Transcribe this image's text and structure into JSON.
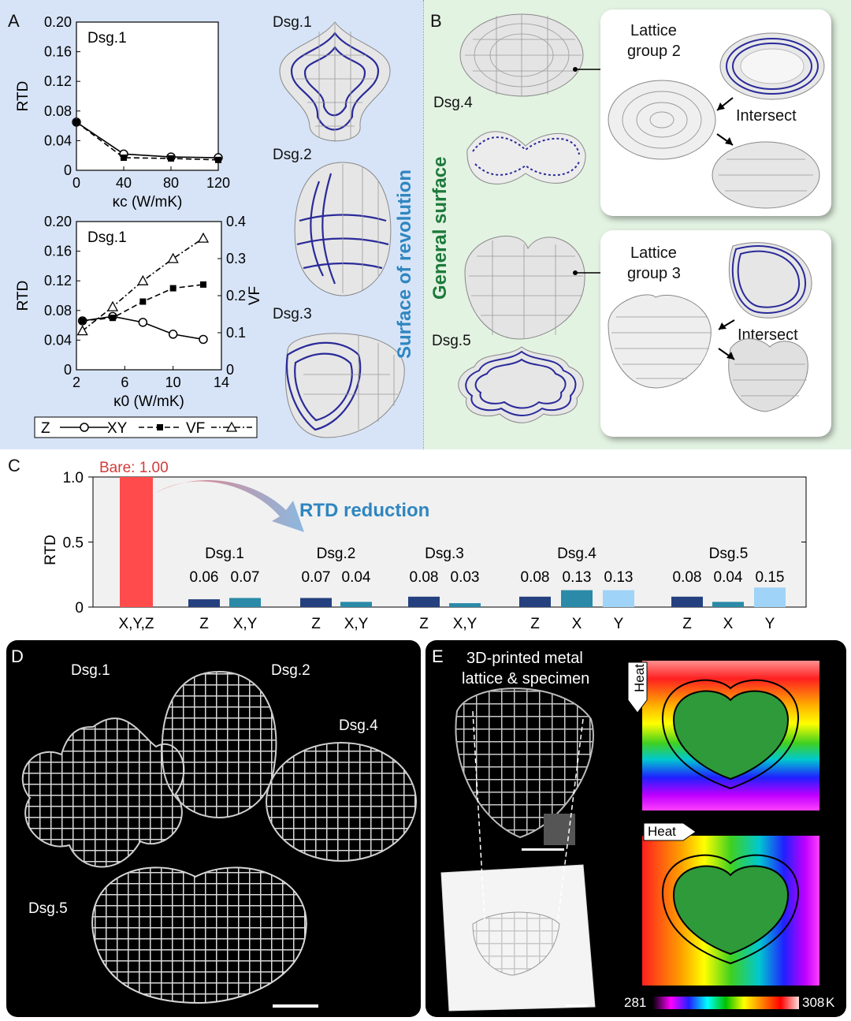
{
  "panels": {
    "a": {
      "label": "A",
      "vertical_label": "Surface of revolution",
      "designs": [
        "Dsg.1",
        "Dsg.2",
        "Dsg.3"
      ]
    },
    "b": {
      "label": "B",
      "vertical_label": "General surface",
      "designs": [
        "Dsg.4",
        "Dsg.5"
      ],
      "groups": [
        {
          "title_line1": "Lattice",
          "title_line2": "group 2",
          "intersect": "Intersect"
        },
        {
          "title_line1": "Lattice",
          "title_line2": "group 3",
          "intersect": "Intersect"
        }
      ]
    },
    "c": {
      "label": "C"
    },
    "d": {
      "label": "D",
      "designs": [
        "Dsg.1",
        "Dsg.2",
        "Dsg.4",
        "Dsg.5"
      ]
    },
    "e": {
      "label": "E",
      "caption_line1": "3D-printed metal",
      "caption_line2": "lattice & specimen",
      "heat_label": "Heat",
      "colorbar_min": "281",
      "colorbar_max": "308",
      "colorbar_unit": "K",
      "colorbar_colors": [
        "#000000",
        "#ff00ff",
        "#2020ff",
        "#00ffff",
        "#00c000",
        "#ffff00",
        "#ff8000",
        "#ff0000",
        "#ffe0e0"
      ]
    }
  },
  "chart_data": [
    {
      "id": "a-top",
      "type": "line",
      "annotation": "Dsg.1",
      "xlabel": "κc (W/mK)",
      "ylabel": "RTD",
      "xlim": [
        0,
        120
      ],
      "ylim": [
        0,
        0.2
      ],
      "xticks": [
        "0",
        "40",
        "80",
        "120"
      ],
      "yticks": [
        "0",
        "0.04",
        "0.08",
        "0.12",
        "0.16",
        "0.20"
      ],
      "series": [
        {
          "name": "Z",
          "x": [
            0,
            40,
            80,
            120
          ],
          "values": [
            0.065,
            0.022,
            0.018,
            0.017
          ]
        },
        {
          "name": "XY",
          "x": [
            0,
            40,
            80,
            120
          ],
          "values": [
            0.065,
            0.017,
            0.016,
            0.014
          ]
        }
      ]
    },
    {
      "id": "a-bottom",
      "type": "line",
      "annotation": "Dsg.1",
      "xlabel": "κ0 (W/mK)",
      "ylabel": "RTD",
      "y2label": "VF",
      "xlim": [
        2,
        14
      ],
      "ylim": [
        0,
        0.2
      ],
      "y2lim": [
        0,
        0.4
      ],
      "xticks": [
        "2",
        "6",
        "10",
        "14"
      ],
      "yticks": [
        "0",
        "0.04",
        "0.08",
        "0.12",
        "0.16",
        "0.20"
      ],
      "y2ticks": [
        "0",
        "0.1",
        "0.2",
        "0.3",
        "0.4"
      ],
      "series": [
        {
          "name": "Z",
          "axis": "left",
          "x": [
            2.5,
            5,
            7.5,
            10,
            12.5
          ],
          "values": [
            0.066,
            0.072,
            0.064,
            0.048,
            0.041
          ]
        },
        {
          "name": "XY",
          "axis": "left",
          "x": [
            2.5,
            5,
            7.5,
            10,
            12.5
          ],
          "values": [
            0.066,
            0.07,
            0.092,
            0.11,
            0.115
          ]
        },
        {
          "name": "VF",
          "axis": "right",
          "x": [
            2.5,
            5,
            7.5,
            10,
            12.5
          ],
          "values": [
            0.105,
            0.17,
            0.24,
            0.3,
            0.355
          ]
        }
      ],
      "legend": [
        "Z",
        "XY",
        "VF"
      ]
    },
    {
      "id": "c",
      "type": "bar",
      "ylabel": "RTD",
      "ylim": [
        0,
        1.0
      ],
      "yticks": [
        "0",
        "0.5",
        "1.0"
      ],
      "bare_label": "Bare: 1.00",
      "reduction_label": "RTD reduction",
      "groups": [
        {
          "name": "",
          "bars": [
            {
              "label": "X,Y,Z",
              "value": 1.0,
              "text": "",
              "color": "#ff4b4b"
            }
          ]
        },
        {
          "name": "Dsg.1",
          "bars": [
            {
              "label": "Z",
              "value": 0.06,
              "text": "0.06",
              "color": "#24407f"
            },
            {
              "label": "X,Y",
              "value": 0.07,
              "text": "0.07",
              "color": "#2a8aa8"
            }
          ]
        },
        {
          "name": "Dsg.2",
          "bars": [
            {
              "label": "Z",
              "value": 0.07,
              "text": "0.07",
              "color": "#24407f"
            },
            {
              "label": "X,Y",
              "value": 0.04,
              "text": "0.04",
              "color": "#2a8aa8"
            }
          ]
        },
        {
          "name": "Dsg.3",
          "bars": [
            {
              "label": "Z",
              "value": 0.08,
              "text": "0.08",
              "color": "#24407f"
            },
            {
              "label": "X,Y",
              "value": 0.03,
              "text": "0.03",
              "color": "#2a8aa8"
            }
          ]
        },
        {
          "name": "Dsg.4",
          "bars": [
            {
              "label": "Z",
              "value": 0.08,
              "text": "0.08",
              "color": "#24407f"
            },
            {
              "label": "X",
              "value": 0.13,
              "text": "0.13",
              "color": "#2a8aa8"
            },
            {
              "label": "Y",
              "value": 0.13,
              "text": "0.13",
              "color": "#9fd3f7"
            }
          ]
        },
        {
          "name": "Dsg.5",
          "bars": [
            {
              "label": "Z",
              "value": 0.08,
              "text": "0.08",
              "color": "#24407f"
            },
            {
              "label": "X",
              "value": 0.04,
              "text": "0.04",
              "color": "#2a8aa8"
            },
            {
              "label": "Y",
              "value": 0.15,
              "text": "0.15",
              "color": "#9fd3f7"
            }
          ]
        }
      ]
    }
  ]
}
